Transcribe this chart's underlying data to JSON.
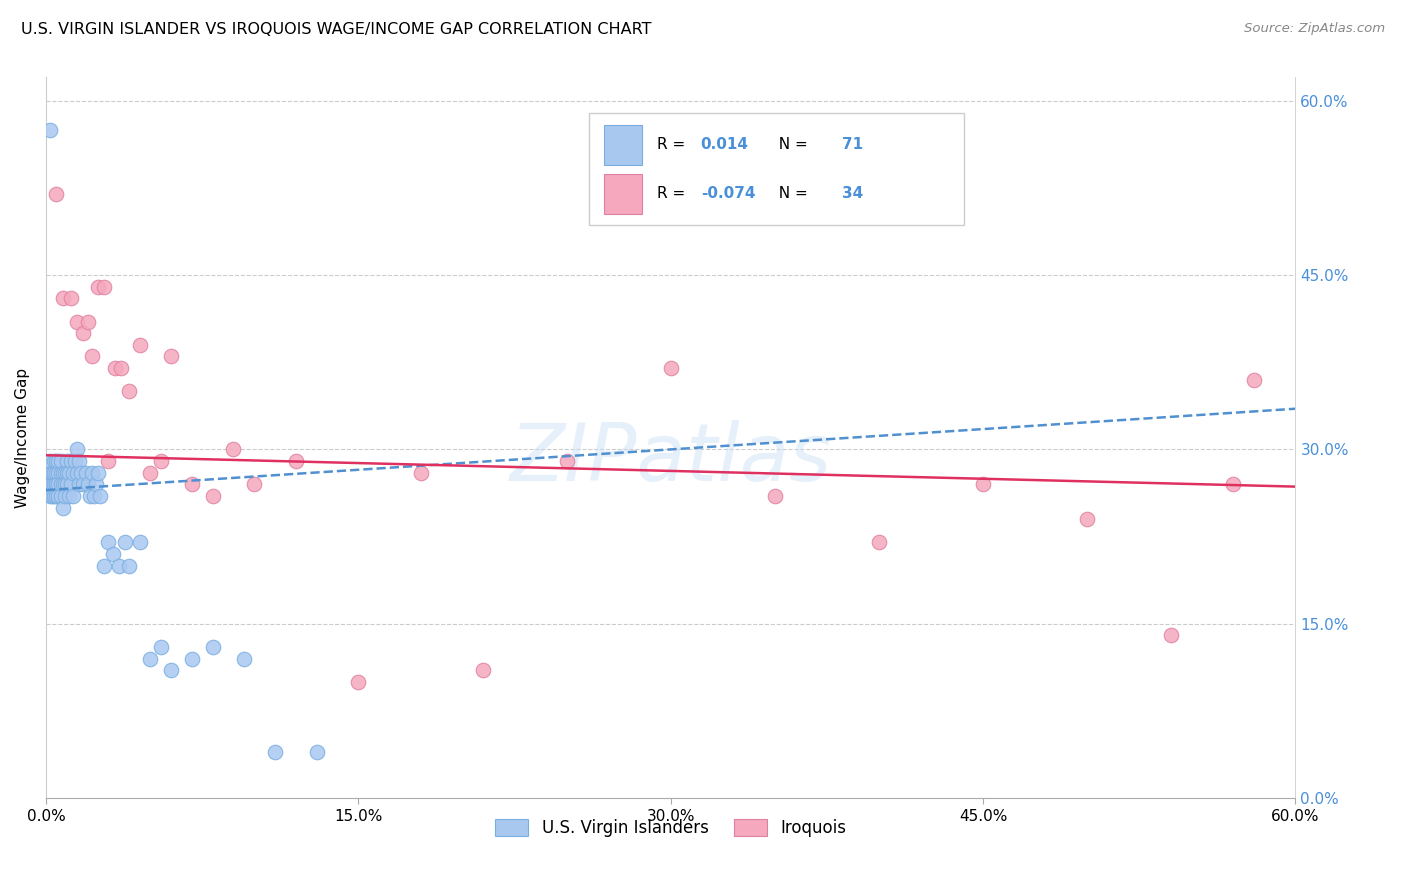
{
  "title": "U.S. VIRGIN ISLANDER VS IROQUOIS WAGE/INCOME GAP CORRELATION CHART",
  "source": "Source: ZipAtlas.com",
  "ylabel": "Wage/Income Gap",
  "xlim": [
    0.0,
    0.6
  ],
  "ylim": [
    0.0,
    0.62
  ],
  "blue_color": "#a8c8f0",
  "pink_color": "#f5a8be",
  "blue_edge_color": "#7aaee0",
  "pink_edge_color": "#e080a0",
  "blue_line_color": "#5090d0",
  "pink_line_color": "#e03060",
  "watermark": "ZIPatlas",
  "blue_label": "U.S. Virgin Islanders",
  "pink_label": "Iroquois",
  "blue_R": "0.014",
  "blue_N": "71",
  "pink_R": "-0.074",
  "pink_N": "34",
  "blue_x": [
    0.001,
    0.001,
    0.002,
    0.002,
    0.002,
    0.003,
    0.003,
    0.003,
    0.004,
    0.004,
    0.004,
    0.004,
    0.005,
    0.005,
    0.005,
    0.005,
    0.005,
    0.006,
    0.006,
    0.006,
    0.006,
    0.007,
    0.007,
    0.007,
    0.007,
    0.008,
    0.008,
    0.008,
    0.009,
    0.009,
    0.009,
    0.01,
    0.01,
    0.01,
    0.011,
    0.011,
    0.012,
    0.012,
    0.013,
    0.013,
    0.014,
    0.015,
    0.015,
    0.016,
    0.016,
    0.017,
    0.018,
    0.019,
    0.02,
    0.021,
    0.022,
    0.023,
    0.024,
    0.025,
    0.026,
    0.028,
    0.03,
    0.032,
    0.035,
    0.038,
    0.04,
    0.045,
    0.05,
    0.055,
    0.06,
    0.07,
    0.08,
    0.095,
    0.11,
    0.13,
    0.002
  ],
  "blue_y": [
    0.28,
    0.27,
    0.27,
    0.26,
    0.29,
    0.27,
    0.28,
    0.26,
    0.27,
    0.28,
    0.26,
    0.29,
    0.28,
    0.27,
    0.26,
    0.29,
    0.27,
    0.28,
    0.27,
    0.26,
    0.29,
    0.28,
    0.27,
    0.29,
    0.26,
    0.28,
    0.27,
    0.25,
    0.28,
    0.27,
    0.26,
    0.29,
    0.28,
    0.27,
    0.28,
    0.26,
    0.29,
    0.27,
    0.28,
    0.26,
    0.29,
    0.28,
    0.3,
    0.27,
    0.29,
    0.28,
    0.27,
    0.28,
    0.27,
    0.26,
    0.28,
    0.26,
    0.27,
    0.28,
    0.26,
    0.2,
    0.22,
    0.21,
    0.2,
    0.22,
    0.2,
    0.22,
    0.12,
    0.13,
    0.11,
    0.12,
    0.13,
    0.12,
    0.04,
    0.04,
    0.575
  ],
  "pink_x": [
    0.005,
    0.008,
    0.012,
    0.015,
    0.018,
    0.02,
    0.022,
    0.025,
    0.028,
    0.03,
    0.033,
    0.036,
    0.04,
    0.045,
    0.05,
    0.055,
    0.06,
    0.07,
    0.08,
    0.09,
    0.1,
    0.12,
    0.15,
    0.18,
    0.21,
    0.25,
    0.3,
    0.35,
    0.4,
    0.45,
    0.5,
    0.54,
    0.57,
    0.58
  ],
  "pink_y": [
    0.52,
    0.43,
    0.43,
    0.41,
    0.4,
    0.41,
    0.38,
    0.44,
    0.44,
    0.29,
    0.37,
    0.37,
    0.35,
    0.39,
    0.28,
    0.29,
    0.38,
    0.27,
    0.26,
    0.3,
    0.27,
    0.29,
    0.1,
    0.28,
    0.11,
    0.29,
    0.37,
    0.26,
    0.22,
    0.27,
    0.24,
    0.14,
    0.27,
    0.36
  ]
}
